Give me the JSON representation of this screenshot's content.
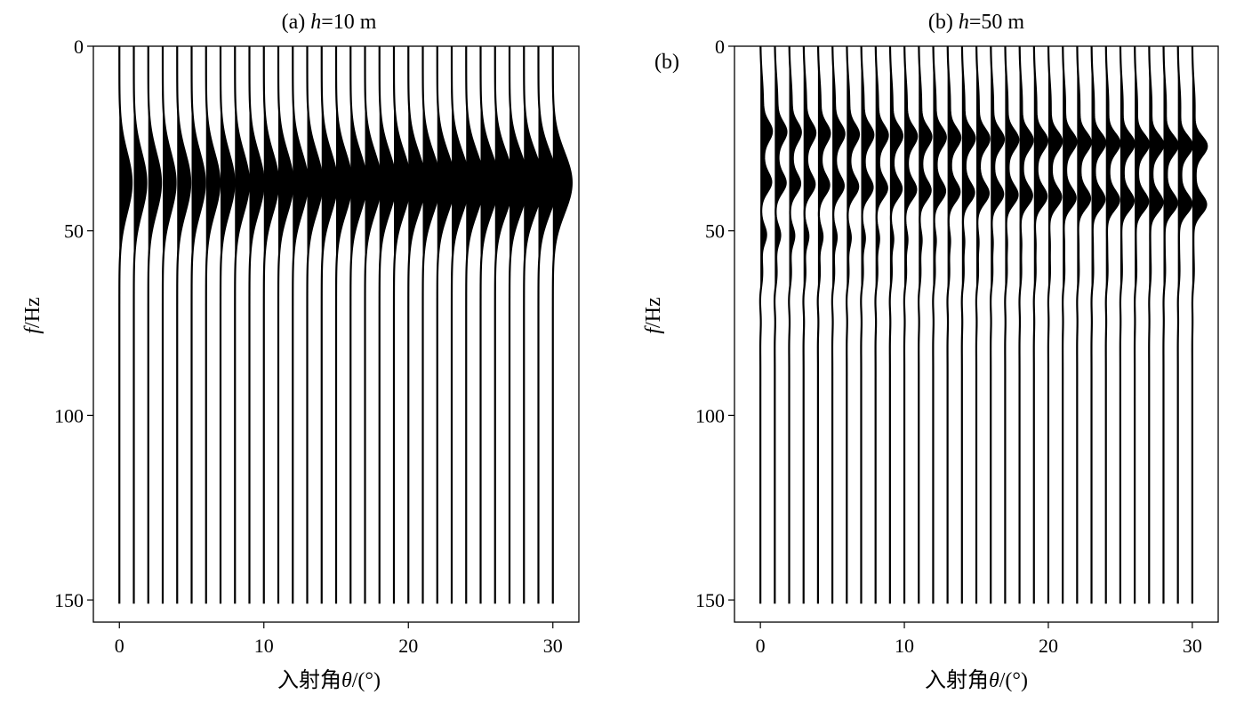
{
  "chart_data": [
    {
      "type": "wiggle",
      "panel": "a",
      "title_prefix": "(a) ",
      "title_var": "h",
      "title_suffix": "=10 m",
      "xlabel_prefix": "入射角",
      "xlabel_var": "θ",
      "xlabel_suffix": "/(°)",
      "ylabel_var": "f",
      "ylabel_suffix": "/Hz",
      "xlim": [
        -1.8,
        31.8
      ],
      "ylim": [
        0,
        156
      ],
      "y_inverted": true,
      "xticks": [
        0,
        10,
        20,
        30
      ],
      "yticks": [
        0,
        50,
        100,
        150
      ],
      "traces_theta_start": 0,
      "traces_theta_end": 30,
      "traces_theta_step": 1,
      "trace_f_range": [
        0,
        151
      ],
      "peak_frequency_hz": 37,
      "peak_amplitude_at_0": 0.85,
      "peak_amplitude_at_30": 1.3
    },
    {
      "type": "wiggle",
      "panel": "b",
      "side_label": "(b)",
      "title_prefix": "(b) ",
      "title_var": "h",
      "title_suffix": "=50 m",
      "xlabel_prefix": "入射角",
      "xlabel_var": "θ",
      "xlabel_suffix": "/(°)",
      "ylabel_var": "f",
      "ylabel_suffix": "/Hz",
      "xlim": [
        -1.8,
        31.8
      ],
      "ylim": [
        0,
        156
      ],
      "y_inverted": true,
      "xticks": [
        0,
        10,
        20,
        30
      ],
      "yticks": [
        0,
        50,
        100,
        150
      ],
      "traces_theta_start": 0,
      "traces_theta_end": 30,
      "traces_theta_step": 1,
      "trace_f_range": [
        0,
        151
      ],
      "notch_peaks_hz_at_0": [
        23,
        37,
        51
      ],
      "notch_peaks_hz_at_30": [
        27,
        43
      ]
    }
  ]
}
